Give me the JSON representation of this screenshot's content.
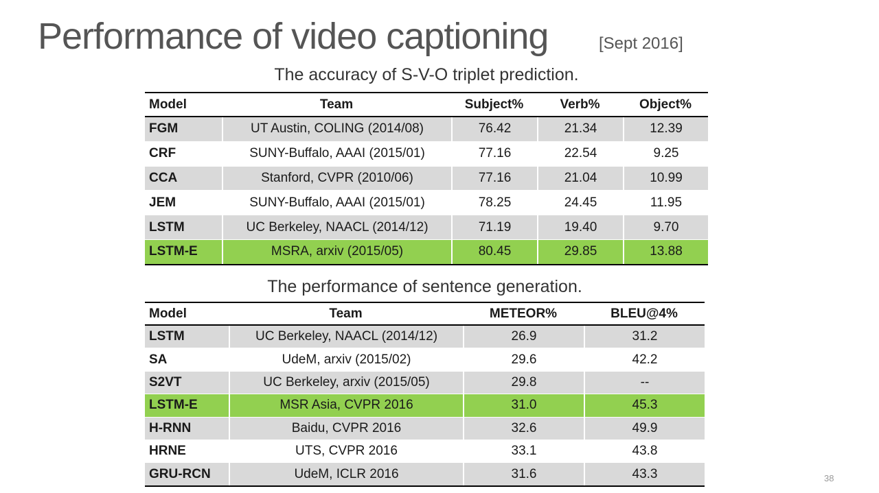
{
  "header": {
    "title": "Performance of video captioning",
    "date": "[Sept 2016]"
  },
  "tables": [
    {
      "caption": "The accuracy of S-V-O triplet prediction.",
      "columns": [
        "Model",
        "Team",
        "Subject%",
        "Verb%",
        "Object%"
      ],
      "rows": [
        {
          "cells": [
            "FGM",
            "UT Austin, COLING (2014/08)",
            "76.42",
            "21.34",
            "12.39"
          ]
        },
        {
          "cells": [
            "CRF",
            "SUNY-Buffalo, AAAI (2015/01)",
            "77.16",
            "22.54",
            "9.25"
          ]
        },
        {
          "cells": [
            "CCA",
            "Stanford, CVPR (2010/06)",
            "77.16",
            "21.04",
            "10.99"
          ]
        },
        {
          "cells": [
            "JEM",
            "SUNY-Buffalo, AAAI (2015/01)",
            "78.25",
            "24.45",
            "11.95"
          ]
        },
        {
          "cells": [
            "LSTM",
            "UC Berkeley, NAACL (2014/12)",
            "71.19",
            "19.40",
            "9.70"
          ]
        },
        {
          "cells": [
            "LSTM-E",
            "MSRA, arxiv (2015/05)",
            "80.45",
            "29.85",
            "13.88"
          ],
          "highlight": true
        }
      ]
    },
    {
      "caption": "The performance of sentence generation.",
      "columns": [
        "Model",
        "Team",
        "METEOR%",
        "BLEU@4%"
      ],
      "rows": [
        {
          "cells": [
            "LSTM",
            "UC Berkeley, NAACL (2014/12)",
            "26.9",
            "31.2"
          ]
        },
        {
          "cells": [
            "SA",
            "UdeM, arxiv (2015/02)",
            "29.6",
            "42.2"
          ]
        },
        {
          "cells": [
            "S2VT",
            "UC Berkeley, arxiv (2015/05)",
            "29.8",
            "--"
          ]
        },
        {
          "cells": [
            "LSTM-E",
            "MSR Asia, CVPR 2016",
            "31.0",
            "45.3"
          ],
          "highlight": true
        },
        {
          "cells": [
            "H-RNN",
            "Baidu, CVPR 2016",
            "32.6",
            "49.9"
          ]
        },
        {
          "cells": [
            "HRNE",
            "UTS, CVPR 2016",
            "33.1",
            "43.8"
          ]
        },
        {
          "cells": [
            "GRU-RCN",
            "UdeM, ICLR 2016",
            "31.6",
            "43.3"
          ]
        }
      ]
    }
  ],
  "footer": {
    "page": "38"
  }
}
